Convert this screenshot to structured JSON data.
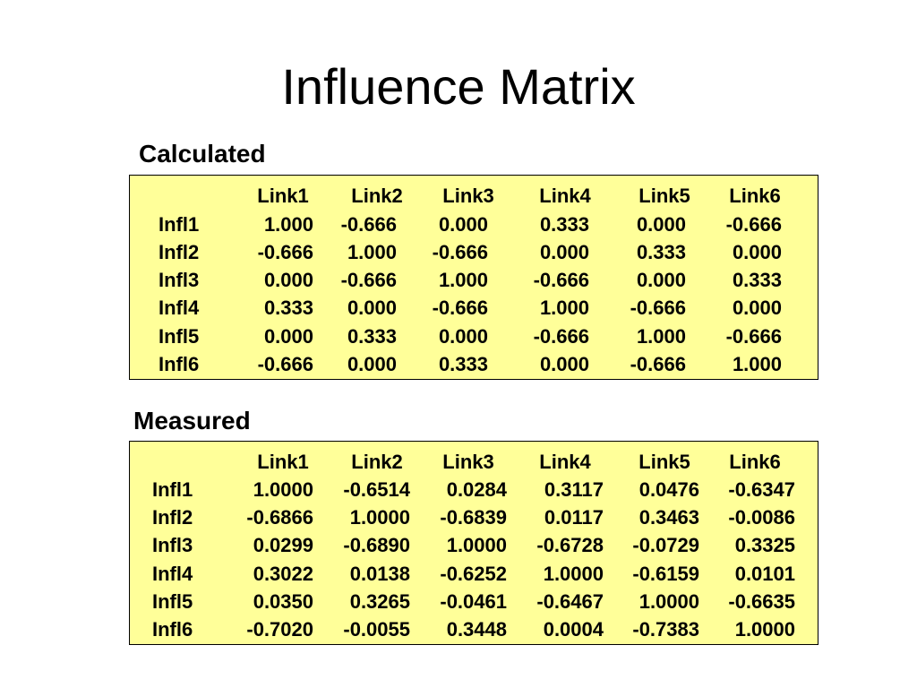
{
  "title": "Influence Matrix",
  "box_color": "#FFFF99",
  "calculated": {
    "label": "Calculated",
    "columns": [
      "Link1",
      "Link2",
      "Link3",
      "Link4",
      "Link5",
      "Link6"
    ],
    "rows": [
      {
        "label": "Infl1",
        "values": [
          "1.000",
          "-0.666",
          "0.000",
          "0.333",
          "0.000",
          "-0.666"
        ]
      },
      {
        "label": "Infl2",
        "values": [
          "-0.666",
          "1.000",
          "-0.666",
          "0.000",
          "0.333",
          "0.000"
        ]
      },
      {
        "label": "Infl3",
        "values": [
          "0.000",
          "-0.666",
          "1.000",
          "-0.666",
          "0.000",
          "0.333"
        ]
      },
      {
        "label": "Infl4",
        "values": [
          "0.333",
          "0.000",
          "-0.666",
          "1.000",
          "-0.666",
          "0.000"
        ]
      },
      {
        "label": "Infl5",
        "values": [
          "0.000",
          "0.333",
          "0.000",
          "-0.666",
          "1.000",
          "-0.666"
        ]
      },
      {
        "label": "Infl6",
        "values": [
          "-0.666",
          "0.000",
          "0.333",
          "0.000",
          "-0.666",
          "1.000"
        ]
      }
    ]
  },
  "measured": {
    "label": "Measured",
    "columns": [
      "Link1",
      "Link2",
      "Link3",
      "Link4",
      "Link5",
      "Link6"
    ],
    "rows": [
      {
        "label": "Infl1",
        "values": [
          "1.0000",
          "-0.6514",
          "0.0284",
          "0.3117",
          "0.0476",
          "-0.6347"
        ]
      },
      {
        "label": "Infl2",
        "values": [
          "-0.6866",
          "1.0000",
          "-0.6839",
          "0.0117",
          "0.3463",
          "-0.0086"
        ]
      },
      {
        "label": "Infl3",
        "values": [
          "0.0299",
          "-0.6890",
          "1.0000",
          "-0.6728",
          "-0.0729",
          "0.3325"
        ]
      },
      {
        "label": "Infl4",
        "values": [
          "0.3022",
          "0.0138",
          "-0.6252",
          "1.0000",
          "-0.6159",
          "0.0101"
        ]
      },
      {
        "label": "Infl5",
        "values": [
          "0.0350",
          "0.3265",
          "-0.0461",
          "-0.6467",
          "1.0000",
          "-0.6635"
        ]
      },
      {
        "label": "Infl6",
        "values": [
          "-0.7020",
          "-0.0055",
          "0.3448",
          "0.0004",
          "-0.7383",
          "1.0000"
        ]
      }
    ]
  }
}
